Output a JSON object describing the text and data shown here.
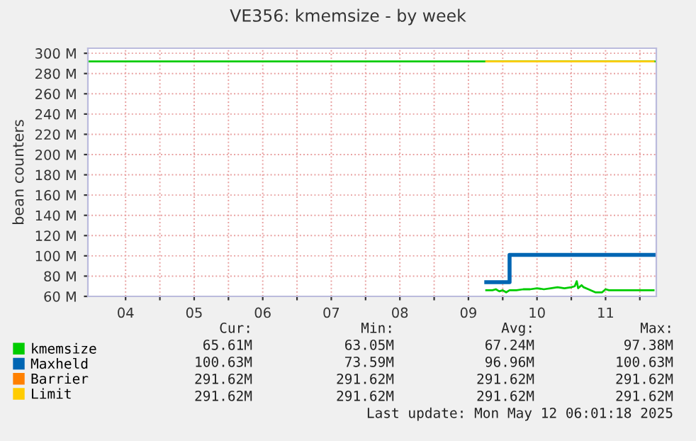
{
  "chart_data": {
    "type": "line",
    "title": "VE356: kmemsize - by week",
    "ylabel": "bean counters",
    "xlim": [
      3.95,
      12.24
    ],
    "xticks": [
      {
        "value": 4.5,
        "label": "04"
      },
      {
        "value": 5,
        "label": null
      },
      {
        "value": 5.5,
        "label": "05"
      },
      {
        "value": 6,
        "label": null
      },
      {
        "value": 6.5,
        "label": "06"
      },
      {
        "value": 7,
        "label": null
      },
      {
        "value": 7.5,
        "label": "07"
      },
      {
        "value": 8,
        "label": null
      },
      {
        "value": 8.5,
        "label": "08"
      },
      {
        "value": 9,
        "label": null
      },
      {
        "value": 9.5,
        "label": "09"
      },
      {
        "value": 10,
        "label": null
      },
      {
        "value": 10.5,
        "label": "10"
      },
      {
        "value": 11,
        "label": null
      },
      {
        "value": 11.5,
        "label": "11"
      },
      {
        "value": 12,
        "label": null
      }
    ],
    "ylim": [
      60,
      305
    ],
    "yticks": [
      {
        "value": 60,
        "label": "60 M"
      },
      {
        "value": 80,
        "label": "80 M"
      },
      {
        "value": 100,
        "label": "100 M"
      },
      {
        "value": 120,
        "label": "120 M"
      },
      {
        "value": 140,
        "label": "140 M"
      },
      {
        "value": 160,
        "label": "160 M"
      },
      {
        "value": 180,
        "label": "180 M"
      },
      {
        "value": 200,
        "label": "200 M"
      },
      {
        "value": 220,
        "label": "220 M"
      },
      {
        "value": 240,
        "label": "240 M"
      },
      {
        "value": 260,
        "label": "260 M"
      },
      {
        "value": 280,
        "label": "280 M"
      },
      {
        "value": 300,
        "label": "300 M"
      }
    ],
    "grid": true,
    "legend": "bottom left",
    "line_style": "solid",
    "marker": "none",
    "ref_lines": [
      {
        "axis": "y",
        "value": 292,
        "color": "#00cc00",
        "line_style": "solid"
      }
    ],
    "series": [
      {
        "name": "kmemsize",
        "color": "#00cc00",
        "x": [
          9.76,
          9.85,
          9.9,
          9.95,
          10.0,
          10.05,
          10.1,
          10.2,
          10.3,
          10.4,
          10.5,
          10.6,
          10.7,
          10.8,
          10.9,
          11.0,
          11.05,
          11.08,
          11.1,
          11.15,
          11.18,
          11.25,
          11.35,
          11.45,
          11.5,
          11.55,
          11.7,
          11.8,
          11.9,
          12.0,
          12.1,
          12.2
        ],
        "values": [
          66,
          66,
          67,
          65,
          66,
          64,
          66,
          66,
          67,
          67,
          68,
          67,
          68,
          69,
          68,
          69,
          70,
          75,
          68,
          71,
          69,
          67,
          64,
          64,
          67,
          66,
          66,
          66,
          66,
          66,
          66,
          66
        ]
      },
      {
        "name": "Maxheld",
        "color": "#0066b3",
        "type": "step",
        "x": [
          9.76,
          10.1,
          12.2
        ],
        "values": [
          74,
          101,
          101
        ]
      },
      {
        "name": "Barrier",
        "color": "#ff8000"
      },
      {
        "name": "Limit",
        "color": "#ffcc00",
        "x": [
          9.76,
          12.2
        ],
        "values": [
          292,
          292
        ]
      }
    ],
    "annotations": [
      "Cur:",
      "Min:",
      "Avg:",
      "Max:",
      "65.61M",
      "63.05M",
      "67.24M",
      "97.38M",
      "100.63M",
      "73.59M",
      "96.96M",
      "100.63M",
      "291.62M",
      "291.62M",
      "291.62M",
      "291.62M",
      "291.62M",
      "291.62M",
      "291.62M",
      "291.62M",
      "Last update: Mon May 12 06:01:18 2025"
    ]
  }
}
